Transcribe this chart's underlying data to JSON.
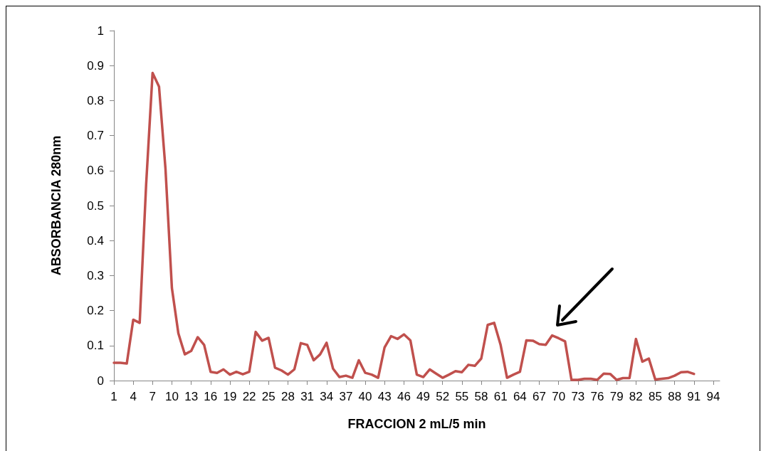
{
  "chart_data": {
    "type": "line",
    "xlabel": "FRACCION 2 mL/5 min",
    "ylabel": "ABSORBANCIA 280nm",
    "categories": [
      "1",
      null,
      null,
      "4",
      null,
      null,
      "7",
      null,
      null,
      "10",
      null,
      null,
      "13",
      null,
      null,
      "16",
      null,
      null,
      "19",
      null,
      null,
      "22",
      null,
      null,
      "25",
      null,
      null,
      "28",
      null,
      null,
      "31",
      null,
      null,
      "34",
      null,
      null,
      "37",
      null,
      null,
      "40",
      null,
      null,
      "43",
      null,
      null,
      "46",
      null,
      null,
      "49",
      null,
      null,
      "52",
      null,
      null,
      "55",
      null,
      null,
      "58",
      null,
      null,
      "61",
      null,
      null,
      "64",
      null,
      null,
      "67",
      null,
      null,
      "70",
      null,
      null,
      "73",
      null,
      null,
      "76",
      null,
      null,
      "79",
      null,
      null,
      "82",
      null,
      null,
      "85",
      null,
      null,
      "88",
      null,
      null,
      "91",
      null,
      null,
      "94",
      null
    ],
    "series": [
      {
        "color": "#c0504d",
        "values": [
          0.051,
          0.051,
          0.049,
          0.174,
          0.165,
          0.56,
          0.879,
          0.84,
          0.606,
          0.264,
          0.135,
          0.075,
          0.085,
          0.124,
          0.102,
          0.025,
          0.022,
          0.032,
          0.017,
          0.025,
          0.018,
          0.025,
          0.139,
          0.114,
          0.122,
          0.037,
          0.029,
          0.017,
          0.032,
          0.107,
          0.102,
          0.058,
          0.075,
          0.108,
          0.034,
          0.01,
          0.014,
          0.008,
          0.058,
          0.022,
          0.017,
          0.008,
          0.095,
          0.127,
          0.119,
          0.132,
          0.115,
          0.017,
          0.01,
          0.032,
          0.02,
          0.008,
          0.017,
          0.027,
          0.024,
          0.045,
          0.042,
          0.063,
          0.159,
          0.165,
          0.102,
          0.008,
          0.017,
          0.025,
          0.115,
          0.114,
          0.104,
          0.102,
          0.129,
          0.121,
          0.112,
          0.002,
          0.002,
          0.005,
          0.005,
          0.002,
          0.02,
          0.019,
          0.002,
          0.007,
          0.007,
          0.119,
          0.054,
          0.063,
          0.003,
          0.005,
          0.007,
          0.014,
          0.024,
          0.025,
          0.019,
          null,
          null,
          null,
          null
        ]
      }
    ],
    "ylim": [
      0,
      1
    ],
    "yticks": [
      0,
      0.1,
      0.2,
      0.3,
      0.4,
      0.5,
      0.6,
      0.7,
      0.8,
      0.9,
      1
    ],
    "grid": false,
    "marker": "none",
    "line_style": "solid"
  }
}
